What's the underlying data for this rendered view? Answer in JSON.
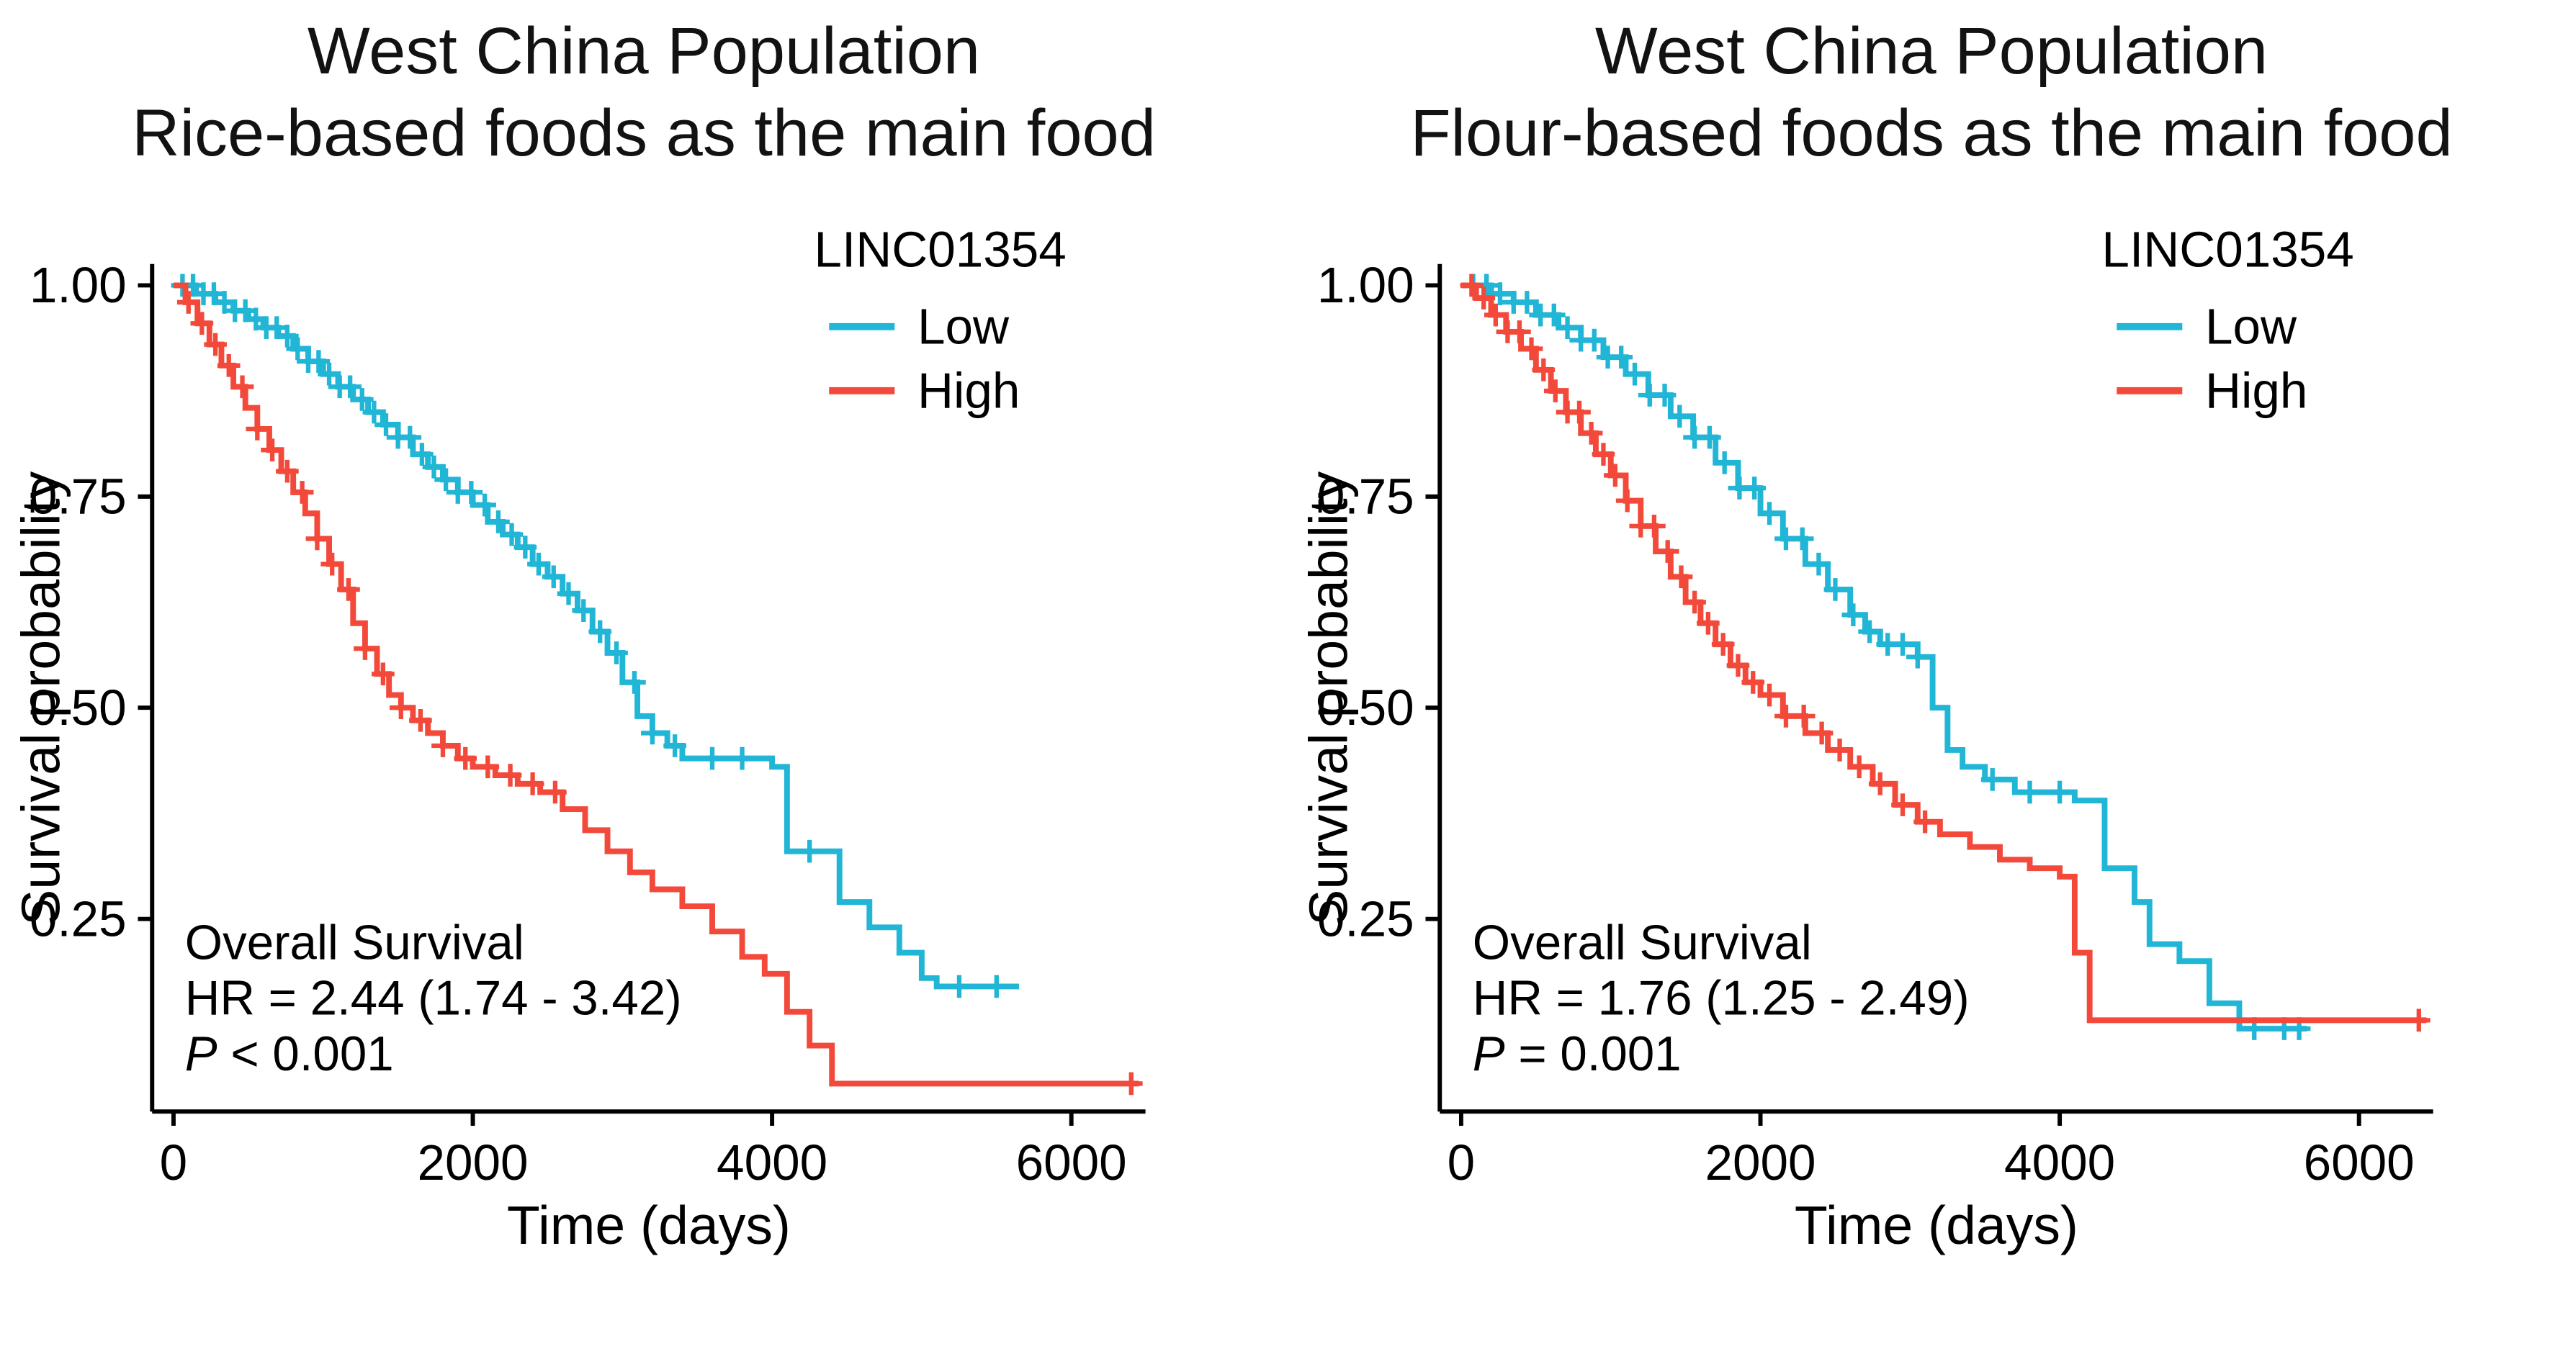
{
  "page": {
    "background": "#ffffff"
  },
  "chart_data": [
    {
      "type": "line",
      "subtype": "kaplan-meier-survival",
      "title_lines": [
        "West China Population",
        "Rice-based foods as the main food"
      ],
      "xlabel": "Time (days)",
      "ylabel": "Survival probability",
      "x_ticks": [
        0,
        2000,
        4000,
        6000
      ],
      "x_tick_labels": [
        "0",
        "2000",
        "4000",
        "6000"
      ],
      "y_ticks": [
        1.0,
        0.75,
        0.5,
        0.25
      ],
      "y_tick_labels": [
        "1.00",
        "0.75",
        "0.50",
        "0.25"
      ],
      "xlim": [
        -150,
        6500
      ],
      "ylim": [
        0.02,
        1.0
      ],
      "grid": false,
      "legend": {
        "title": "LINC01354",
        "position": "top-right",
        "entries": [
          {
            "label": "Low",
            "color": "#21B5D6"
          },
          {
            "label": "High",
            "color": "#F3493B"
          }
        ]
      },
      "annotation": {
        "line1": "Overall Survival",
        "line2": "HR = 2.44 (1.74 -  3.42)",
        "p_italic": "P",
        "p_rest": " < 0.001"
      },
      "series": [
        {
          "name": "Low",
          "color": "#21B5D6",
          "end": 5650,
          "points": [
            [
              0,
              1.0
            ],
            [
              150,
              0.99
            ],
            [
              280,
              0.98
            ],
            [
              400,
              0.97
            ],
            [
              500,
              0.96
            ],
            [
              600,
              0.95
            ],
            [
              700,
              0.94
            ],
            [
              800,
              0.925
            ],
            [
              900,
              0.91
            ],
            [
              1000,
              0.895
            ],
            [
              1100,
              0.88
            ],
            [
              1200,
              0.865
            ],
            [
              1300,
              0.85
            ],
            [
              1400,
              0.835
            ],
            [
              1500,
              0.82
            ],
            [
              1600,
              0.8
            ],
            [
              1700,
              0.785
            ],
            [
              1800,
              0.77
            ],
            [
              1900,
              0.755
            ],
            [
              2000,
              0.74
            ],
            [
              2100,
              0.72
            ],
            [
              2200,
              0.705
            ],
            [
              2300,
              0.69
            ],
            [
              2400,
              0.67
            ],
            [
              2500,
              0.655
            ],
            [
              2600,
              0.635
            ],
            [
              2700,
              0.615
            ],
            [
              2800,
              0.59
            ],
            [
              2900,
              0.565
            ],
            [
              3000,
              0.53
            ],
            [
              3100,
              0.49
            ],
            [
              3200,
              0.47
            ],
            [
              3300,
              0.455
            ],
            [
              3400,
              0.44
            ],
            [
              4000,
              0.43
            ],
            [
              4100,
              0.33
            ],
            [
              4450,
              0.27
            ],
            [
              4650,
              0.24
            ],
            [
              4850,
              0.21
            ],
            [
              5000,
              0.18
            ],
            [
              5100,
              0.17
            ]
          ],
          "censor_times": [
            60,
            130,
            200,
            270,
            340,
            410,
            480,
            550,
            620,
            690,
            760,
            830,
            900,
            970,
            1040,
            1110,
            1180,
            1260,
            1340,
            1420,
            1500,
            1580,
            1660,
            1740,
            1820,
            1900,
            1990,
            2080,
            2170,
            2260,
            2350,
            2440,
            2540,
            2640,
            2740,
            2850,
            2960,
            3080,
            3200,
            3350,
            3600,
            3800,
            4250,
            5250,
            5500
          ]
        },
        {
          "name": "High",
          "color": "#F3493B",
          "end": 6450,
          "points": [
            [
              0,
              1.0
            ],
            [
              80,
              0.98
            ],
            [
              160,
              0.955
            ],
            [
              240,
              0.93
            ],
            [
              320,
              0.905
            ],
            [
              400,
              0.88
            ],
            [
              480,
              0.855
            ],
            [
              560,
              0.83
            ],
            [
              640,
              0.805
            ],
            [
              720,
              0.78
            ],
            [
              800,
              0.755
            ],
            [
              880,
              0.73
            ],
            [
              960,
              0.7
            ],
            [
              1040,
              0.67
            ],
            [
              1120,
              0.64
            ],
            [
              1200,
              0.6
            ],
            [
              1280,
              0.57
            ],
            [
              1360,
              0.54
            ],
            [
              1440,
              0.515
            ],
            [
              1520,
              0.5
            ],
            [
              1600,
              0.485
            ],
            [
              1700,
              0.47
            ],
            [
              1800,
              0.455
            ],
            [
              1900,
              0.44
            ],
            [
              2000,
              0.43
            ],
            [
              2150,
              0.42
            ],
            [
              2300,
              0.41
            ],
            [
              2450,
              0.4
            ],
            [
              2600,
              0.38
            ],
            [
              2750,
              0.355
            ],
            [
              2900,
              0.33
            ],
            [
              3050,
              0.305
            ],
            [
              3200,
              0.285
            ],
            [
              3400,
              0.265
            ],
            [
              3600,
              0.235
            ],
            [
              3800,
              0.205
            ],
            [
              3950,
              0.185
            ],
            [
              4100,
              0.14
            ],
            [
              4250,
              0.1
            ],
            [
              4400,
              0.055
            ]
          ],
          "censor_times": [
            100,
            190,
            280,
            370,
            460,
            560,
            660,
            760,
            860,
            960,
            1060,
            1170,
            1280,
            1400,
            1520,
            1650,
            1800,
            1950,
            2100,
            2250,
            2400,
            2550,
            6400
          ]
        }
      ]
    },
    {
      "type": "line",
      "subtype": "kaplan-meier-survival",
      "title_lines": [
        "West China Population",
        "Flour-based foods as the main food"
      ],
      "xlabel": "Time (days)",
      "ylabel": "Survival probability",
      "x_ticks": [
        0,
        2000,
        4000,
        6000
      ],
      "x_tick_labels": [
        "0",
        "2000",
        "4000",
        "6000"
      ],
      "y_ticks": [
        1.0,
        0.75,
        0.5,
        0.25
      ],
      "y_tick_labels": [
        "1.00",
        "0.75",
        "0.50",
        "0.25"
      ],
      "xlim": [
        -150,
        6500
      ],
      "ylim": [
        0.02,
        1.0
      ],
      "grid": false,
      "legend": {
        "title": "LINC01354",
        "position": "top-right",
        "entries": [
          {
            "label": "Low",
            "color": "#21B5D6"
          },
          {
            "label": "High",
            "color": "#F3493B"
          }
        ]
      },
      "annotation": {
        "line1": "Overall Survival",
        "line2": "HR = 1.76 (1.25 -  2.49)",
        "p_italic": "P",
        "p_rest": " = 0.001"
      },
      "series": [
        {
          "name": "Low",
          "color": "#21B5D6",
          "end": 5650,
          "points": [
            [
              0,
              1.0
            ],
            [
              200,
              0.99
            ],
            [
              350,
              0.98
            ],
            [
              500,
              0.965
            ],
            [
              650,
              0.95
            ],
            [
              800,
              0.935
            ],
            [
              950,
              0.915
            ],
            [
              1100,
              0.895
            ],
            [
              1250,
              0.87
            ],
            [
              1400,
              0.845
            ],
            [
              1550,
              0.82
            ],
            [
              1700,
              0.79
            ],
            [
              1850,
              0.76
            ],
            [
              2000,
              0.73
            ],
            [
              2150,
              0.7
            ],
            [
              2300,
              0.67
            ],
            [
              2450,
              0.64
            ],
            [
              2600,
              0.61
            ],
            [
              2700,
              0.59
            ],
            [
              2800,
              0.575
            ],
            [
              3050,
              0.56
            ],
            [
              3150,
              0.5
            ],
            [
              3250,
              0.45
            ],
            [
              3350,
              0.43
            ],
            [
              3500,
              0.415
            ],
            [
              3700,
              0.4
            ],
            [
              4100,
              0.39
            ],
            [
              4300,
              0.31
            ],
            [
              4500,
              0.27
            ],
            [
              4600,
              0.22
            ],
            [
              4800,
              0.2
            ],
            [
              5000,
              0.15
            ],
            [
              5200,
              0.12
            ]
          ],
          "censor_times": [
            80,
            170,
            260,
            350,
            440,
            530,
            620,
            710,
            800,
            890,
            980,
            1070,
            1160,
            1260,
            1360,
            1460,
            1560,
            1660,
            1760,
            1860,
            1960,
            2060,
            2170,
            2280,
            2390,
            2500,
            2620,
            2730,
            2850,
            2950,
            3050,
            3550,
            3800,
            4000,
            5300,
            5500,
            5600
          ]
        },
        {
          "name": "High",
          "color": "#F3493B",
          "end": 6450,
          "points": [
            [
              0,
              1.0
            ],
            [
              100,
              0.985
            ],
            [
              200,
              0.965
            ],
            [
              300,
              0.945
            ],
            [
              400,
              0.925
            ],
            [
              500,
              0.9
            ],
            [
              600,
              0.875
            ],
            [
              700,
              0.85
            ],
            [
              800,
              0.825
            ],
            [
              900,
              0.8
            ],
            [
              1000,
              0.775
            ],
            [
              1100,
              0.745
            ],
            [
              1200,
              0.715
            ],
            [
              1300,
              0.685
            ],
            [
              1400,
              0.655
            ],
            [
              1500,
              0.625
            ],
            [
              1600,
              0.6
            ],
            [
              1700,
              0.575
            ],
            [
              1800,
              0.55
            ],
            [
              1900,
              0.53
            ],
            [
              2000,
              0.515
            ],
            [
              2150,
              0.49
            ],
            [
              2300,
              0.47
            ],
            [
              2450,
              0.45
            ],
            [
              2600,
              0.43
            ],
            [
              2750,
              0.41
            ],
            [
              2900,
              0.385
            ],
            [
              3050,
              0.365
            ],
            [
              3200,
              0.35
            ],
            [
              3400,
              0.335
            ],
            [
              3600,
              0.32
            ],
            [
              3800,
              0.31
            ],
            [
              4000,
              0.3
            ],
            [
              4100,
              0.21
            ],
            [
              4200,
              0.13
            ]
          ],
          "censor_times": [
            70,
            150,
            230,
            310,
            390,
            470,
            550,
            630,
            710,
            790,
            870,
            950,
            1030,
            1110,
            1200,
            1290,
            1380,
            1470,
            1560,
            1650,
            1750,
            1850,
            1950,
            2060,
            2170,
            2290,
            2410,
            2530,
            2660,
            2800,
            2950,
            3100,
            6400
          ]
        }
      ]
    }
  ]
}
